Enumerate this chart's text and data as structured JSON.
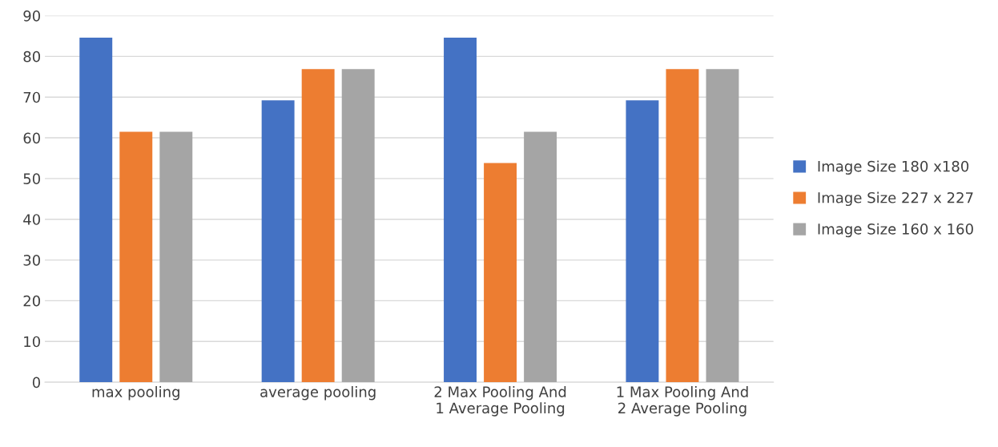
{
  "chart_data": {
    "type": "bar",
    "categories": [
      "max pooling",
      "average pooling",
      "2 Max Pooling And\n1 Average Pooling",
      "1 Max Pooling And\n2 Average Pooling"
    ],
    "series": [
      {
        "name": "Image Size 180 x180",
        "color": "#4472c4",
        "values": [
          84.6,
          69.2,
          84.6,
          69.2
        ]
      },
      {
        "name": "Image Size 227 x 227",
        "color": "#ed7d31",
        "values": [
          61.5,
          76.9,
          53.8,
          76.9
        ]
      },
      {
        "name": "Image Size 160 x 160",
        "color": "#a5a5a5",
        "values": [
          61.5,
          76.9,
          61.5,
          76.9
        ]
      }
    ],
    "ylim": [
      0,
      90
    ],
    "yticks": [
      0,
      10,
      20,
      30,
      40,
      50,
      60,
      70,
      80,
      90
    ],
    "grid": "y",
    "legend": "right"
  }
}
